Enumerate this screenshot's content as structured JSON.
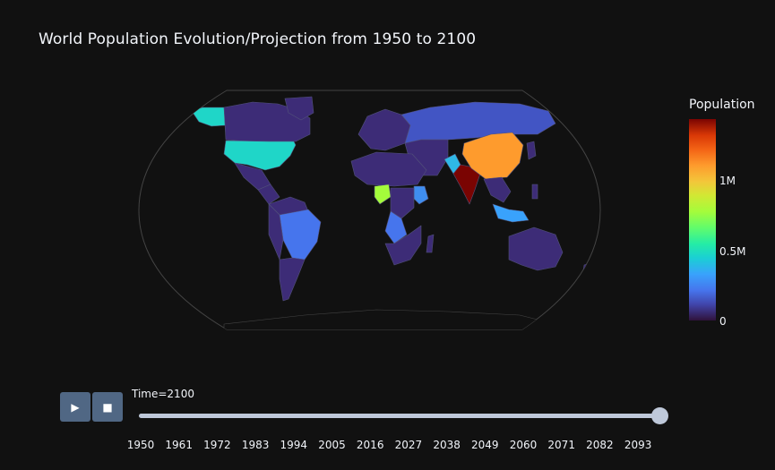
{
  "title": "World Population Evolution/Projection from 1950 to 2100",
  "colorbar": {
    "title": "Population",
    "ticks": [
      "1M",
      "0.5M",
      "0"
    ],
    "colorscale": [
      "#30123b",
      "#4145ab",
      "#4675ed",
      "#39a2fc",
      "#1bcfd4",
      "#24eca6",
      "#61fc6c",
      "#a4fc3b",
      "#d1e834",
      "#f3c63a",
      "#fe9b2d",
      "#f36315",
      "#d93806",
      "#b11901",
      "#7a0402"
    ]
  },
  "colors": {
    "background": "#111111",
    "land_default": "#3d2c77",
    "graticule": "#444444",
    "button": "#506784",
    "slider": "#bec8d9",
    "usa": "#1fd6c8",
    "canada": "#38c7d9",
    "china": "#fe9b2d",
    "india": "#7a0402",
    "brazil": "#4675ed",
    "nigeria": "#a4fc3b",
    "indonesia": "#39a2fc",
    "russia": "#4255c4",
    "pakistan": "#2fb8e6",
    "ethiopia": "#3f8ef0",
    "drc": "#4675ed"
  },
  "animation": {
    "play_icon": "▶",
    "stop_icon": "■",
    "current_label": "Time=2100",
    "current_value": 2100,
    "min": 1950,
    "max": 2100,
    "steps": [
      "1950",
      "1961",
      "1972",
      "1983",
      "1994",
      "2005",
      "2016",
      "2027",
      "2038",
      "2049",
      "2060",
      "2071",
      "2082",
      "2093"
    ]
  }
}
